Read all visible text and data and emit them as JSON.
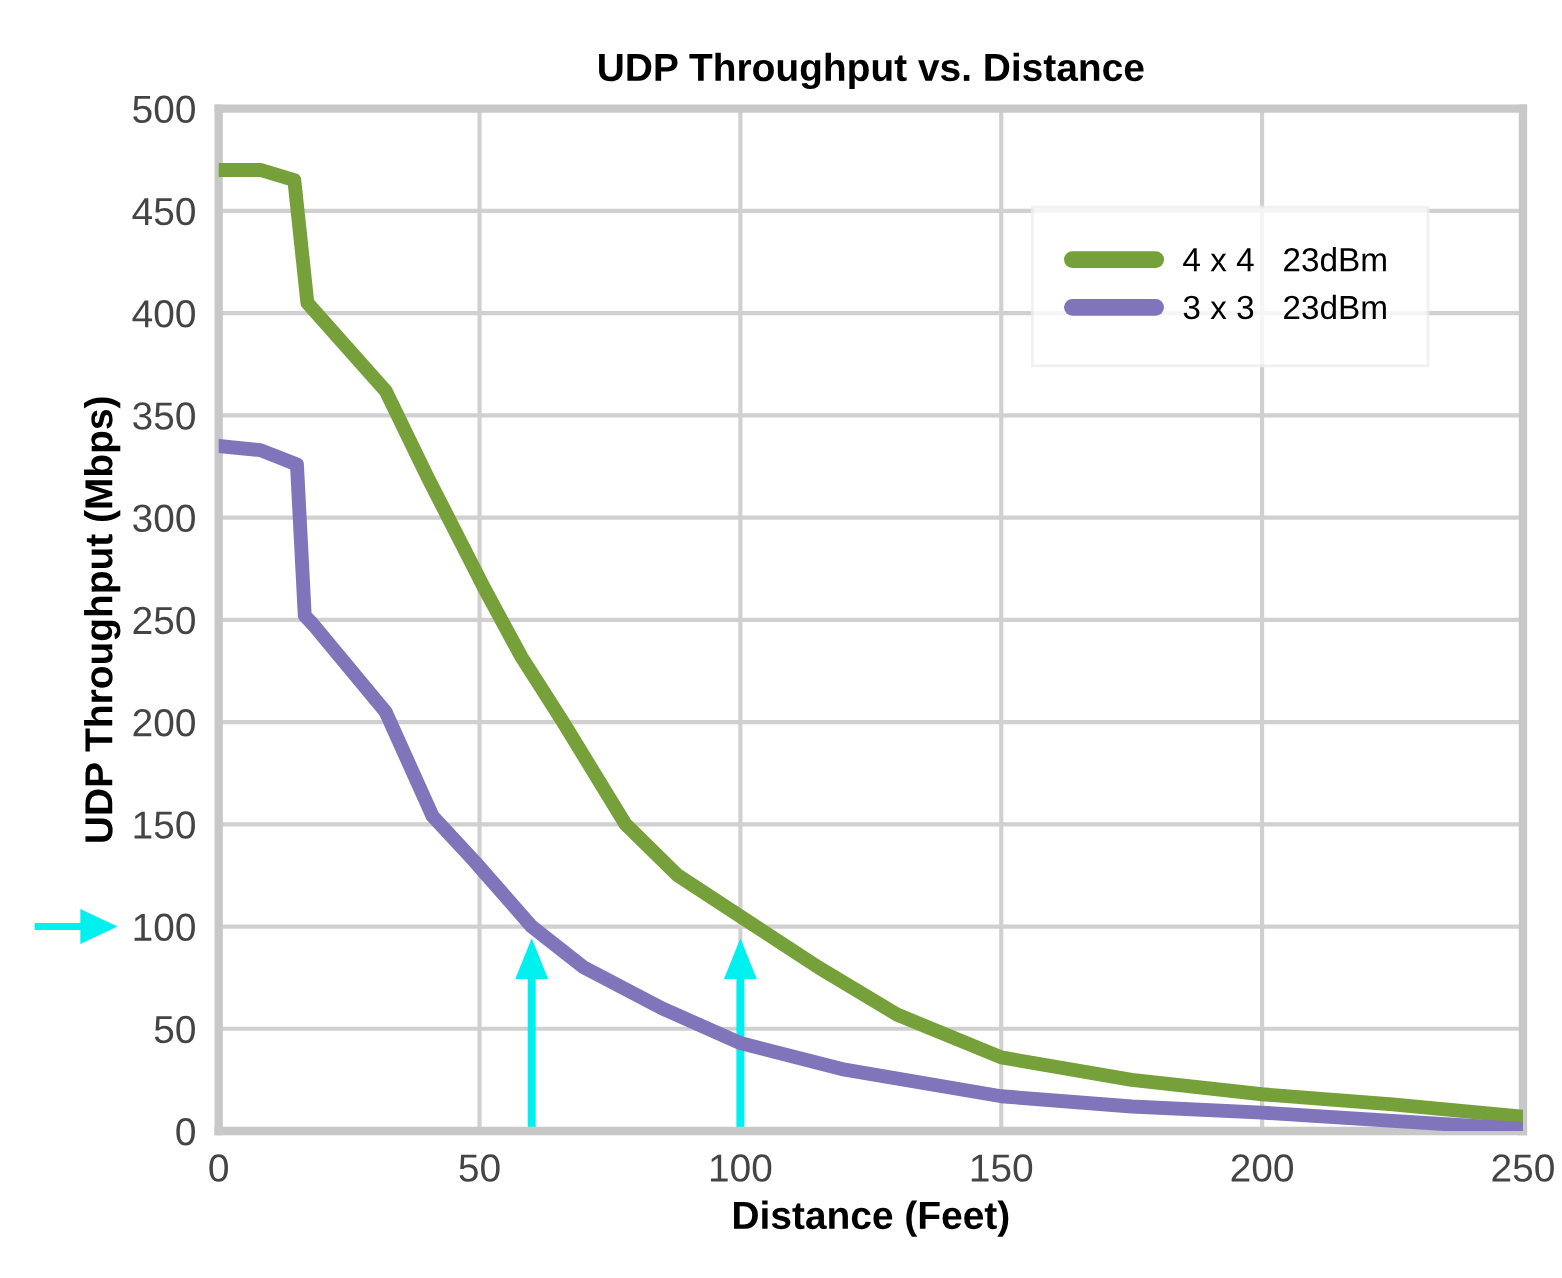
{
  "chart_data": {
    "type": "line",
    "title": "UDP Throughput vs. Distance",
    "xlabel": "Distance (Feet)",
    "ylabel": "UDP Throughput (Mbps)",
    "series": [
      {
        "name": "4 x 4   23dBm",
        "color": "#76a03a",
        "x": [
          0,
          8,
          14.5,
          17,
          32,
          40,
          51,
          58,
          66,
          78,
          88,
          100,
          115,
          130,
          150,
          175,
          200,
          225,
          250
        ],
        "values": [
          470,
          470,
          465,
          405,
          362,
          320,
          265,
          232,
          200,
          150,
          125,
          105,
          80,
          57,
          36,
          25,
          18,
          13,
          7
        ]
      },
      {
        "name": "3 x 3   23dBm",
        "color": "#8074bb",
        "x": [
          0,
          8,
          15,
          16.5,
          18,
          32,
          41,
          49,
          60,
          70,
          85,
          100,
          120,
          150,
          175,
          200,
          225,
          250
        ],
        "values": [
          335,
          333,
          326,
          252,
          248,
          205,
          154,
          132,
          100,
          80,
          60,
          43,
          30,
          17,
          12,
          9,
          5,
          1
        ]
      }
    ],
    "xlim": [
      0,
      250
    ],
    "xticks": [
      0,
      50,
      100,
      150,
      200,
      250
    ],
    "ylim": [
      0,
      500
    ],
    "yticks": [
      0,
      50,
      100,
      150,
      200,
      250,
      300,
      350,
      400,
      450,
      500
    ],
    "grid": true,
    "legend": "top right",
    "marker": "none",
    "line_style": "solid"
  }
}
